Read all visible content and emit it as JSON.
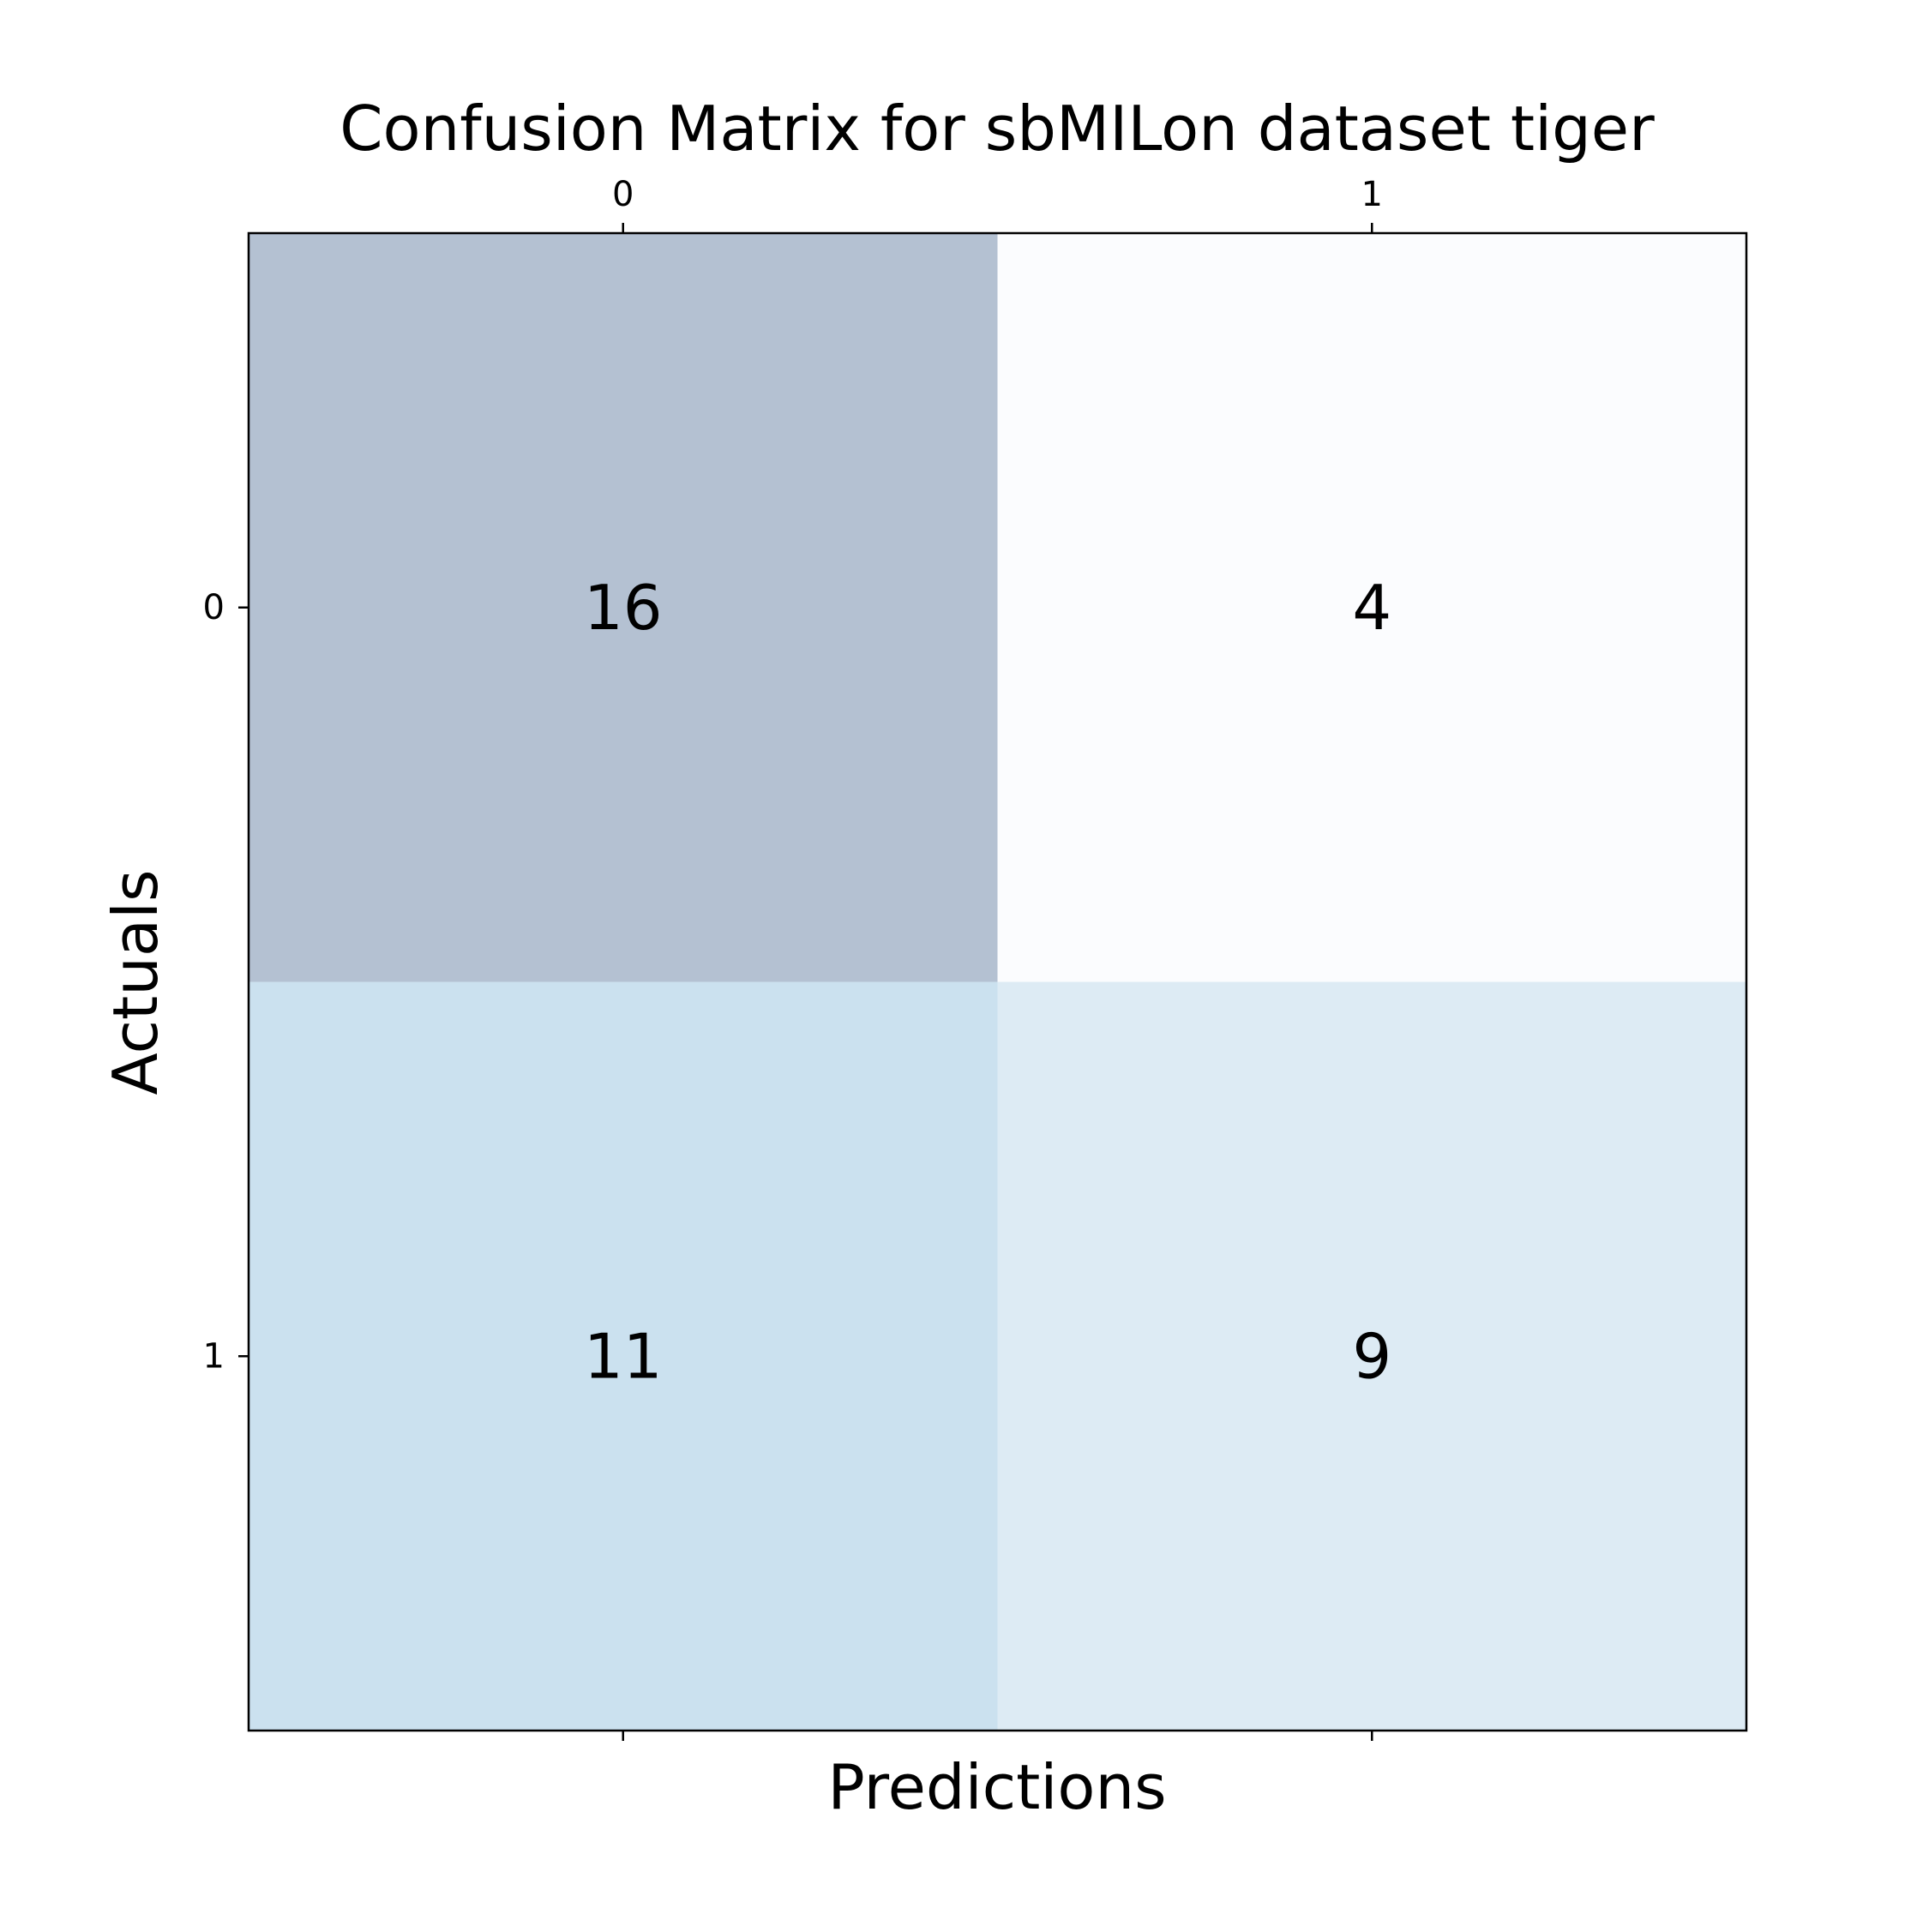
{
  "chart_data": {
    "type": "heatmap",
    "title": "Confusion Matrix for sbMILon dataset tiger",
    "xlabel": "Predictions",
    "ylabel": "Actuals",
    "x_categories": [
      "0",
      "1"
    ],
    "y_categories": [
      "0",
      "1"
    ],
    "matrix": [
      [
        16,
        4
      ],
      [
        11,
        9
      ]
    ],
    "cell_labels": [
      [
        "16",
        "4"
      ],
      [
        "11",
        "9"
      ]
    ],
    "x_ticks_position": "top",
    "y_ticks_position": "left",
    "legend": "none",
    "grid": false,
    "colors": {
      "low": "#fbfcfe",
      "high": "#b4c1d2",
      "cell_fills": [
        [
          "#b4c1d2",
          "#fbfcfe"
        ],
        [
          "#cbe1ef",
          "#ddebf4"
        ]
      ]
    }
  }
}
